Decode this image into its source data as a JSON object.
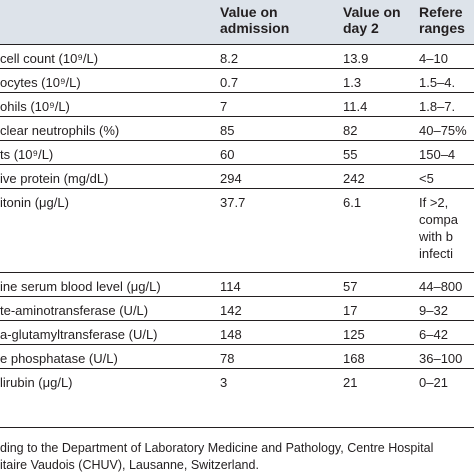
{
  "table": {
    "headers": [
      "",
      "Value on\nadmission",
      "Value on\nday 2",
      "Refere\nranges"
    ],
    "rows": [
      [
        "cell count (10⁹/L)",
        "8.2",
        "13.9",
        "4–10"
      ],
      [
        "ocytes (10⁹/L)",
        "0.7",
        "1.3",
        "1.5–4."
      ],
      [
        "ohils (10⁹/L)",
        "7",
        "11.4",
        "1.8–7."
      ],
      [
        "clear neutrophils (%)",
        "85",
        "82",
        "40–75%"
      ],
      [
        "ts (10⁹/L)",
        "60",
        "55",
        "150–4"
      ],
      [
        "ive protein (mg/dL)",
        "294",
        "242",
        "<5"
      ],
      [
        "itonin (μg/L)",
        "37.7",
        "6.1",
        "If >2,\ncompa\nwith b\ninfecti"
      ],
      [
        "ine serum blood level (μg/L)",
        "114",
        "57",
        "44–800"
      ],
      [
        "te-aminotransferase (U/L)",
        "142",
        "17",
        "9–32"
      ],
      [
        "a-glutamyltransferase (U/L)",
        "148",
        "125",
        "6–42"
      ],
      [
        "e phosphatase (U/L)",
        "78",
        "168",
        "36–100"
      ],
      [
        "lirubin (μg/L)",
        "3",
        "21",
        "0–21"
      ]
    ]
  },
  "footnote": "ding to the Department of Laboratory Medicine and Pathology, Centre Hospital\nitaire Vaudois (CHUV), Lausanne, Switzerland."
}
